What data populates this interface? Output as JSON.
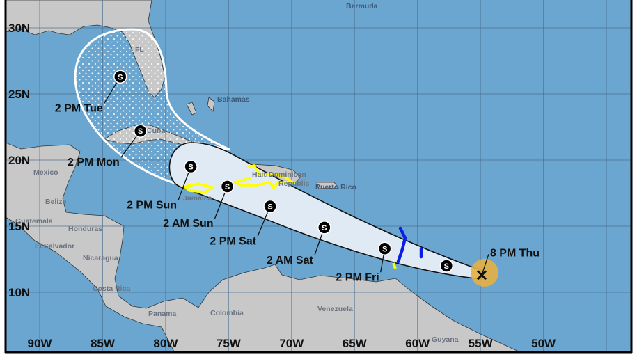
{
  "map": {
    "colors": {
      "ocean": "#6aa6cf",
      "land": "#c8c8c8",
      "cone_day1_3": "#dfeaf4",
      "cone_outline": "#111111",
      "cone_day4_5_outline": "#ffffff",
      "tropical_storm_warning": "#ffff00",
      "hurricane_watch_or_ts_watch": "#0a1ee6",
      "current_wind_field": "#e6b043",
      "gridline": "#4a6f90"
    },
    "lat_labels": [
      "30N",
      "25N",
      "20N",
      "15N",
      "10N"
    ],
    "lon_labels": [
      "90W",
      "85W",
      "80W",
      "75W",
      "70W",
      "65W",
      "60W",
      "55W",
      "50W"
    ],
    "places": {
      "bermuda": "Bermuda",
      "fl": "FL",
      "bahamas": "Bahamas",
      "cuba": "Cuba",
      "mexico": "Mexico",
      "belize": "Belize",
      "guatemala": "Guatemala",
      "honduras": "Honduras",
      "el_salvador": "El Salvador",
      "nicaragua": "Nicaragua",
      "costa_rica": "Costa Rica",
      "panama": "Panama",
      "colombia": "Colombia",
      "venezuela": "Venezuela",
      "jamaica": "Jamaica",
      "haiti": "Haiti",
      "dominican": "Dominican",
      "republic": "Republic",
      "puerto_rico": "Puerto Rico",
      "guyana": "Guyana"
    },
    "current_position": {
      "label": "8 PM Thu",
      "lon": -54.9,
      "lat": 11.3,
      "icon": "x-mark-icon"
    },
    "forecast_points": [
      {
        "label": "",
        "symbol": "S",
        "lon": -57.7,
        "lat": 12.0
      },
      {
        "label": "2 PM Fri",
        "symbol": "S",
        "lon": -62.6,
        "lat": 13.3
      },
      {
        "label": "2 AM Sat",
        "symbol": "S",
        "lon": -67.4,
        "lat": 14.9
      },
      {
        "label": "2 PM Sat",
        "symbol": "S",
        "lon": -71.7,
        "lat": 16.5
      },
      {
        "label": "2 AM Sun",
        "symbol": "S",
        "lon": -75.1,
        "lat": 18.0
      },
      {
        "label": "2 PM Sun",
        "symbol": "S",
        "lon": -78.0,
        "lat": 19.5
      },
      {
        "label": "2 PM Mon",
        "symbol": "S",
        "lon": -82.0,
        "lat": 22.2
      },
      {
        "label": "2 PM Tue",
        "symbol": "S",
        "lon": -83.6,
        "lat": 26.3
      }
    ]
  }
}
